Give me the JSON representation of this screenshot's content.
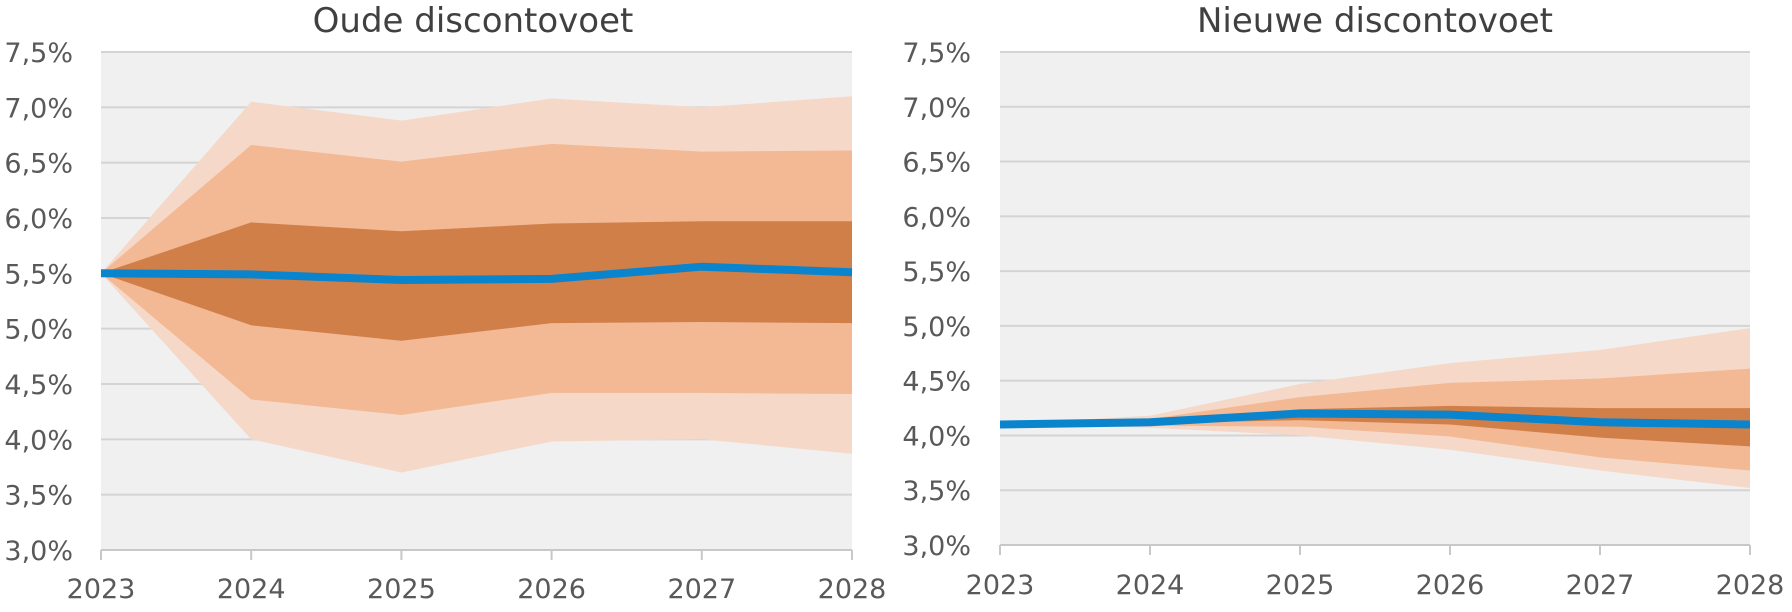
{
  "colors": {
    "plot_bg": "#f0f0f0",
    "band_outer": "#f5d8c7",
    "band_mid": "#f3b894",
    "band_inner": "#d17f49",
    "median_line": "#0a84cc"
  },
  "chart_data": [
    {
      "type": "area",
      "title": "Oude discontovoet",
      "x": [
        "2023",
        "2024",
        "2025",
        "2026",
        "2027",
        "2028"
      ],
      "y_ticks": [
        "3,0%",
        "3,5%",
        "4,0%",
        "4,5%",
        "5,0%",
        "5,5%",
        "6,0%",
        "6,5%",
        "7,0%",
        "7,5%"
      ],
      "ylim": [
        3.0,
        7.5
      ],
      "grid": true,
      "bands": {
        "outer_low": [
          5.5,
          4.0,
          3.7,
          3.98,
          4.0,
          3.87
        ],
        "outer_high": [
          5.5,
          7.05,
          6.88,
          7.08,
          7.0,
          7.1
        ],
        "mid_low": [
          5.5,
          4.36,
          4.22,
          4.42,
          4.42,
          4.41
        ],
        "mid_high": [
          5.5,
          6.66,
          6.51,
          6.67,
          6.6,
          6.61
        ],
        "inner_low": [
          5.5,
          5.03,
          4.89,
          5.05,
          5.06,
          5.05
        ],
        "inner_high": [
          5.5,
          5.96,
          5.88,
          5.95,
          5.97,
          5.97
        ]
      },
      "median": [
        5.5,
        5.49,
        5.44,
        5.45,
        5.56,
        5.51
      ]
    },
    {
      "type": "area",
      "title": "Nieuwe discontovoet",
      "x": [
        "2023",
        "2024",
        "2025",
        "2026",
        "2027",
        "2028"
      ],
      "y_ticks": [
        "3,0%",
        "3,5%",
        "4,0%",
        "4,5%",
        "5,0%",
        "5,5%",
        "6,0%",
        "6,5%",
        "7,0%",
        "7,5%"
      ],
      "ylim": [
        3.0,
        7.5
      ],
      "grid": true,
      "bands": {
        "outer_low": [
          4.1,
          4.07,
          4.0,
          3.87,
          3.68,
          3.52
        ],
        "outer_high": [
          4.1,
          4.18,
          4.47,
          4.66,
          4.78,
          4.98
        ],
        "mid_low": [
          4.1,
          4.09,
          4.08,
          3.99,
          3.8,
          3.68
        ],
        "mid_high": [
          4.1,
          4.15,
          4.35,
          4.48,
          4.52,
          4.61
        ],
        "inner_low": [
          4.1,
          4.11,
          4.14,
          4.1,
          3.98,
          3.9
        ],
        "inner_high": [
          4.1,
          4.13,
          4.24,
          4.27,
          4.25,
          4.25
        ]
      },
      "median": [
        4.1,
        4.12,
        4.2,
        4.19,
        4.12,
        4.1
      ]
    }
  ]
}
